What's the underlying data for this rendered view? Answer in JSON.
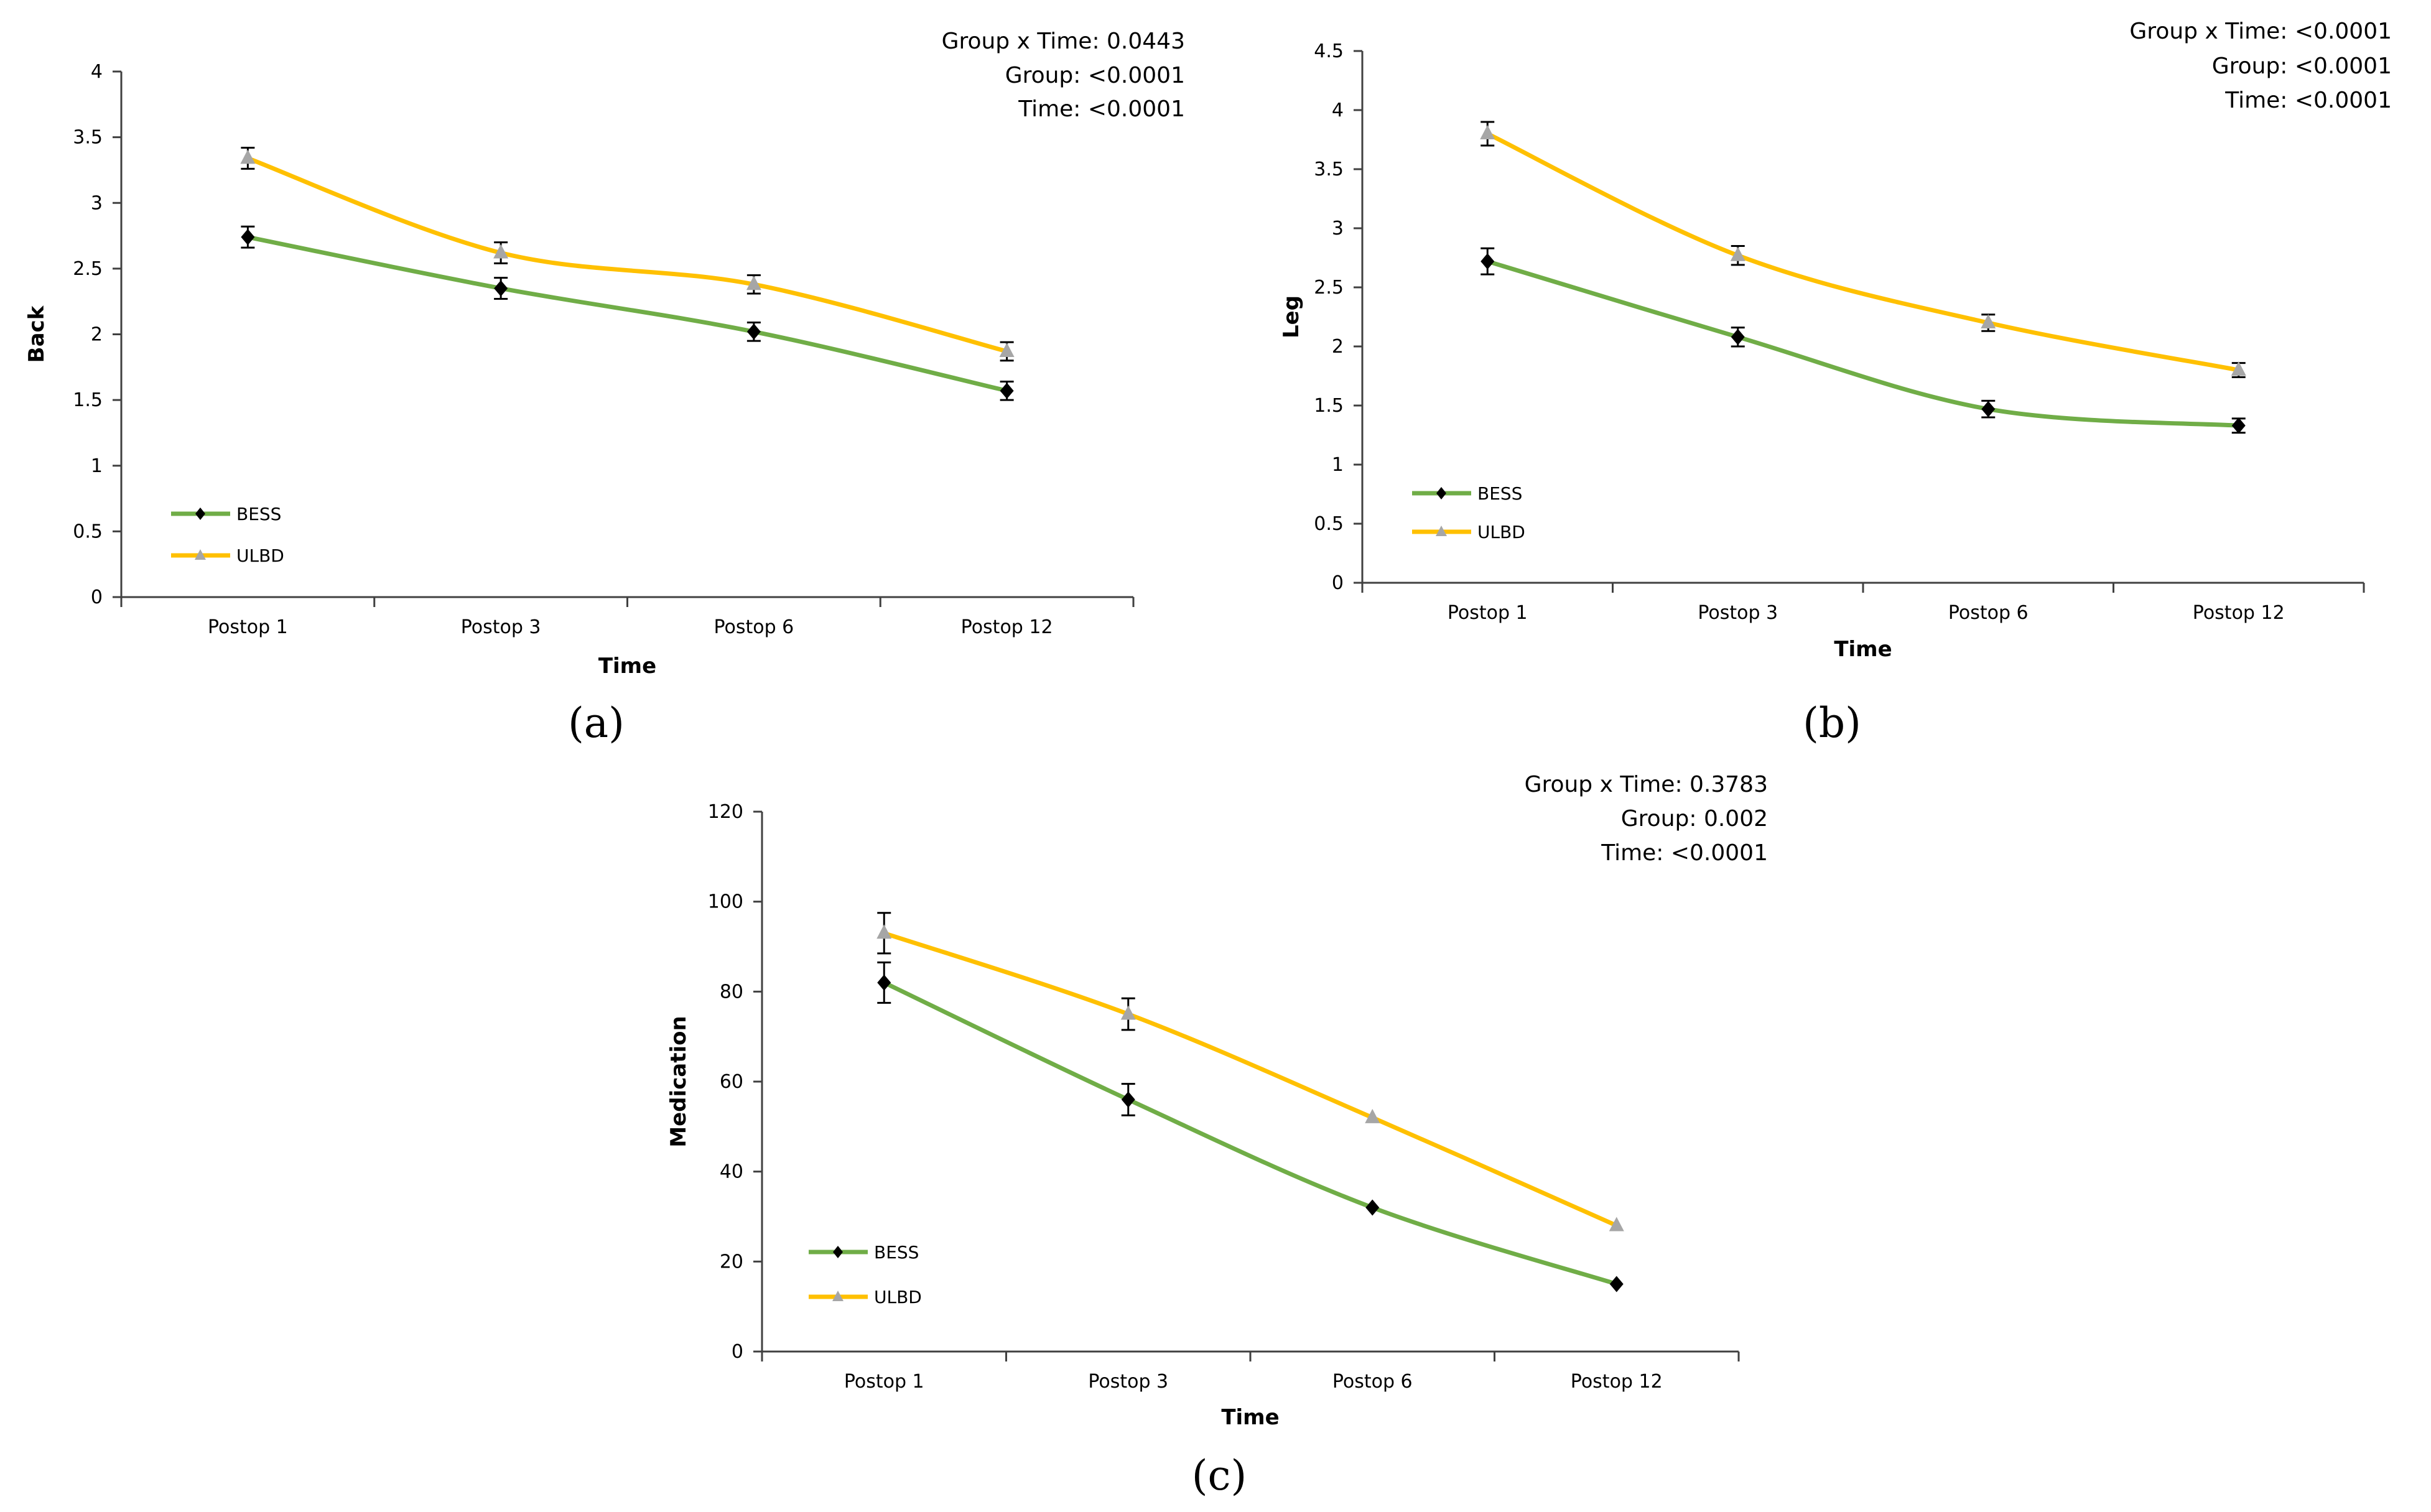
{
  "chart_data": [
    {
      "type": "line",
      "panel_label": "(a)",
      "categories": [
        "Postop 1",
        "Postop 3",
        "Postop 6",
        "Postop 12"
      ],
      "xlabel": "Time",
      "ylabel": "Back",
      "ylim": [
        0,
        4
      ],
      "yticks": [
        "0",
        "0.5",
        "1",
        "1.5",
        "2",
        "2.5",
        "3",
        "3.5",
        "4"
      ],
      "stats": [
        "Group x Time: 0.0443",
        "Group: <0.0001",
        "Time: <0.0001"
      ],
      "legend_position": "bottom-left",
      "series": [
        {
          "name": "BESS",
          "color": "#70ad47",
          "marker": "diamond",
          "marker_color": "#000000",
          "values": [
            2.74,
            2.35,
            2.02,
            1.57
          ],
          "error": [
            0.08,
            0.08,
            0.07,
            0.07
          ]
        },
        {
          "name": "ULBD",
          "color": "#ffc000",
          "marker": "triangle",
          "marker_color": "#a6a6a6",
          "values": [
            3.34,
            2.62,
            2.38,
            1.87
          ],
          "error": [
            0.08,
            0.08,
            0.07,
            0.07
          ]
        }
      ]
    },
    {
      "type": "line",
      "panel_label": "(b)",
      "categories": [
        "Postop 1",
        "Postop 3",
        "Postop 6",
        "Postop 12"
      ],
      "xlabel": "Time",
      "ylabel": "Leg",
      "ylim": [
        0,
        4.5
      ],
      "yticks": [
        "0",
        "0.5",
        "1",
        "1.5",
        "2",
        "2.5",
        "3",
        "3.5",
        "4",
        "4.5"
      ],
      "stats": [
        "Group x Time: <0.0001",
        "Group: <0.0001",
        "Time: <0.0001"
      ],
      "legend_position": "bottom-left",
      "series": [
        {
          "name": "BESS",
          "color": "#70ad47",
          "marker": "diamond",
          "marker_color": "#000000",
          "values": [
            2.72,
            2.08,
            1.47,
            1.33
          ],
          "error": [
            0.11,
            0.08,
            0.07,
            0.06
          ]
        },
        {
          "name": "ULBD",
          "color": "#ffc000",
          "marker": "triangle",
          "marker_color": "#a6a6a6",
          "values": [
            3.8,
            2.77,
            2.2,
            1.8
          ],
          "error": [
            0.1,
            0.08,
            0.07,
            0.06
          ]
        }
      ]
    },
    {
      "type": "line",
      "panel_label": "(c)",
      "categories": [
        "Postop 1",
        "Postop 3",
        "Postop 6",
        "Postop 12"
      ],
      "xlabel": "Time",
      "ylabel": "Medication",
      "ylim": [
        0,
        120
      ],
      "yticks": [
        "0",
        "20",
        "40",
        "60",
        "80",
        "100",
        "120"
      ],
      "stats": [
        "Group x Time: 0.3783",
        "Group: 0.002",
        "Time: <0.0001"
      ],
      "legend_position": "bottom-left",
      "series": [
        {
          "name": "BESS",
          "color": "#70ad47",
          "marker": "diamond",
          "marker_color": "#000000",
          "values": [
            82,
            56,
            32,
            15
          ],
          "error": [
            4.5,
            3.5,
            0,
            0
          ]
        },
        {
          "name": "ULBD",
          "color": "#ffc000",
          "marker": "triangle",
          "marker_color": "#a6a6a6",
          "values": [
            93,
            75,
            52,
            28
          ],
          "error": [
            4.5,
            3.5,
            0,
            0
          ]
        }
      ]
    }
  ]
}
